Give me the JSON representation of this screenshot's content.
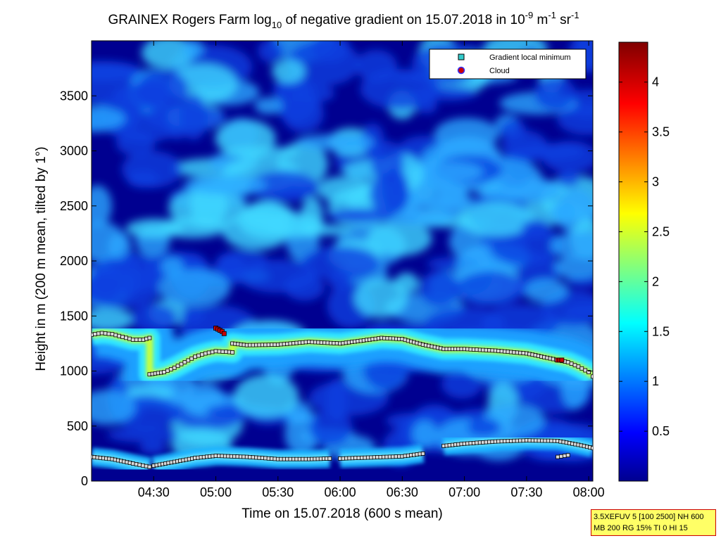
{
  "chart_data": {
    "type": "heatmap",
    "title": {
      "prefix": "GRAINEX Rogers Farm log",
      "prefix_sub": "10",
      "middle": " of negative gradient on 15.07.2018 in 10",
      "sup1": "-9",
      "mid2": " m",
      "sup2": "-1",
      "mid3": " sr",
      "sup3": "-1"
    },
    "xlabel": "Time on 15.07.2018 (600 s mean)",
    "ylabel": "Height in m (200 m mean, tilted by 1°)",
    "x_ticks": [
      "04:30",
      "05:00",
      "05:30",
      "06:00",
      "06:30",
      "07:00",
      "07:30",
      "08:00"
    ],
    "x_range": [
      "04:00",
      "08:02"
    ],
    "y_ticks": [
      0,
      500,
      1000,
      1500,
      2000,
      2500,
      3000,
      3500
    ],
    "ylim": [
      0,
      4000
    ],
    "colorbar": {
      "ticks": [
        0.5,
        1,
        1.5,
        2,
        2.5,
        3,
        3.5,
        4
      ],
      "range": [
        0,
        4.4
      ],
      "colormap": "jet"
    },
    "legend": {
      "placement": "top-right",
      "entries": [
        {
          "label": "Gradient local minimum",
          "marker": "square",
          "color": "#33cccc"
        },
        {
          "label": "Cloud",
          "marker": "circle",
          "color": "#cc0000"
        }
      ]
    },
    "series": [
      {
        "name": "Gradient local minimum",
        "segments": [
          {
            "x": [
              "04:00",
              "04:05",
              "04:10",
              "04:15",
              "04:20",
              "04:25",
              "04:28"
            ],
            "y": [
              1330,
              1345,
              1335,
              1310,
              1285,
              1285,
              1300
            ]
          },
          {
            "x": [
              "04:28",
              "04:35",
              "04:40",
              "04:45",
              "04:50",
              "04:55",
              "05:00",
              "05:05",
              "05:08"
            ],
            "y": [
              970,
              990,
              1030,
              1080,
              1130,
              1160,
              1180,
              1175,
              1170
            ]
          },
          {
            "x": [
              "05:08",
              "05:15",
              "05:30",
              "05:45",
              "06:00",
              "06:10",
              "06:20",
              "06:30",
              "06:40",
              "06:50",
              "07:00",
              "07:15",
              "07:30",
              "07:40",
              "07:50",
              "07:55",
              "08:00",
              "08:02"
            ],
            "y": [
              1250,
              1235,
              1240,
              1265,
              1250,
              1275,
              1300,
              1290,
              1240,
              1200,
              1200,
              1185,
              1160,
              1120,
              1080,
              1040,
              990,
              950
            ]
          },
          {
            "x": [
              "04:00",
              "04:10",
              "04:20",
              "04:28"
            ],
            "y": [
              220,
              200,
              160,
              130
            ]
          },
          {
            "x": [
              "04:30",
              "04:40",
              "04:50",
              "05:00",
              "05:15",
              "05:30",
              "05:45",
              "05:55"
            ],
            "y": [
              140,
              175,
              210,
              230,
              220,
              200,
              200,
              205
            ]
          },
          {
            "x": [
              "06:00",
              "06:15",
              "06:30",
              "06:40"
            ],
            "y": [
              205,
              215,
              225,
              250
            ]
          },
          {
            "x": [
              "06:50",
              "07:00",
              "07:15",
              "07:30",
              "07:45",
              "07:55",
              "08:02"
            ],
            "y": [
              320,
              340,
              360,
              370,
              365,
              330,
              300
            ]
          },
          {
            "x": [
              "07:45",
              "07:50"
            ],
            "y": [
              220,
              235
            ]
          }
        ]
      },
      {
        "name": "Cloud",
        "x": [
          "05:00",
          "05:01",
          "05:02",
          "05:03",
          "05:04",
          "07:45",
          "07:46",
          "07:47"
        ],
        "y": [
          1390,
          1380,
          1370,
          1360,
          1340,
          1100,
          1100,
          1100
        ]
      }
    ]
  },
  "info_box": {
    "line1": "3.5XEFUV 5 [100 2500] NH 600",
    "line2": "MB 200 RG 15% TI 0 HI 15"
  }
}
